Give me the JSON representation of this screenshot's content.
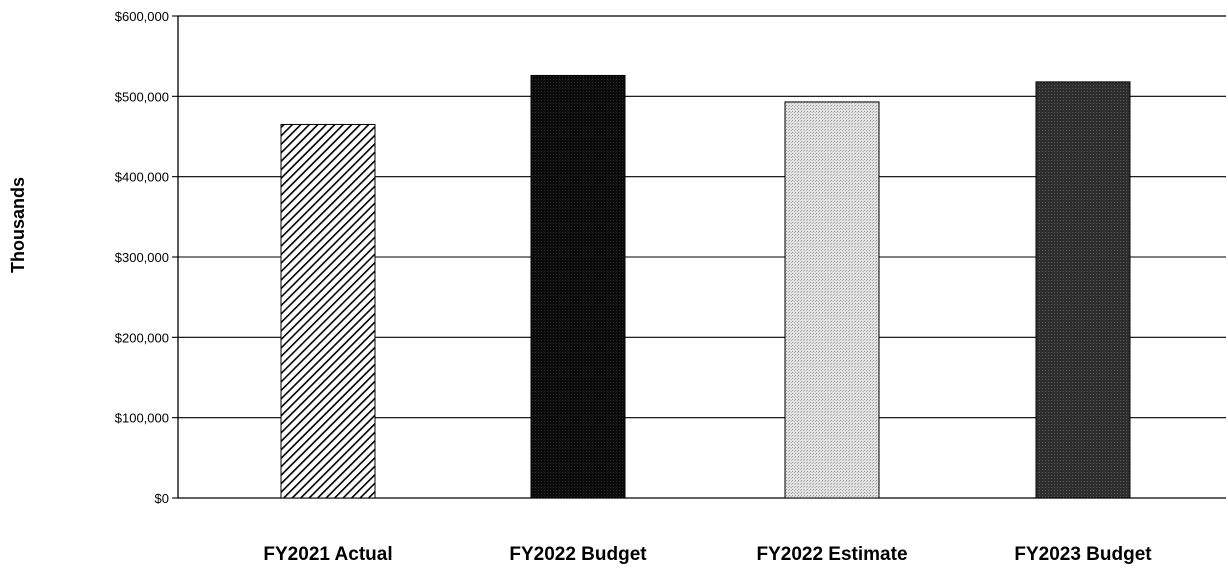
{
  "chart_data": {
    "type": "bar",
    "title": "",
    "xlabel": "",
    "ylabel": "Thousands",
    "categories": [
      "FY2021 Actual",
      "FY2022 Budget",
      "FY2022 Estimate",
      "FY2023 Budget"
    ],
    "values": [
      465000,
      526000,
      493000,
      518000
    ],
    "ylim": [
      0,
      600000
    ],
    "yticks": [
      0,
      100000,
      200000,
      300000,
      400000,
      500000,
      600000
    ],
    "ytick_labels": [
      "$0",
      "$100,000",
      "$200,000",
      "$300,000",
      "$400,000",
      "$500,000",
      "$600,000"
    ],
    "grid": true,
    "legend": "none",
    "bar_fills": [
      "hatch-diagonal",
      "black",
      "light-gray-stipple",
      "dark-gray"
    ]
  }
}
